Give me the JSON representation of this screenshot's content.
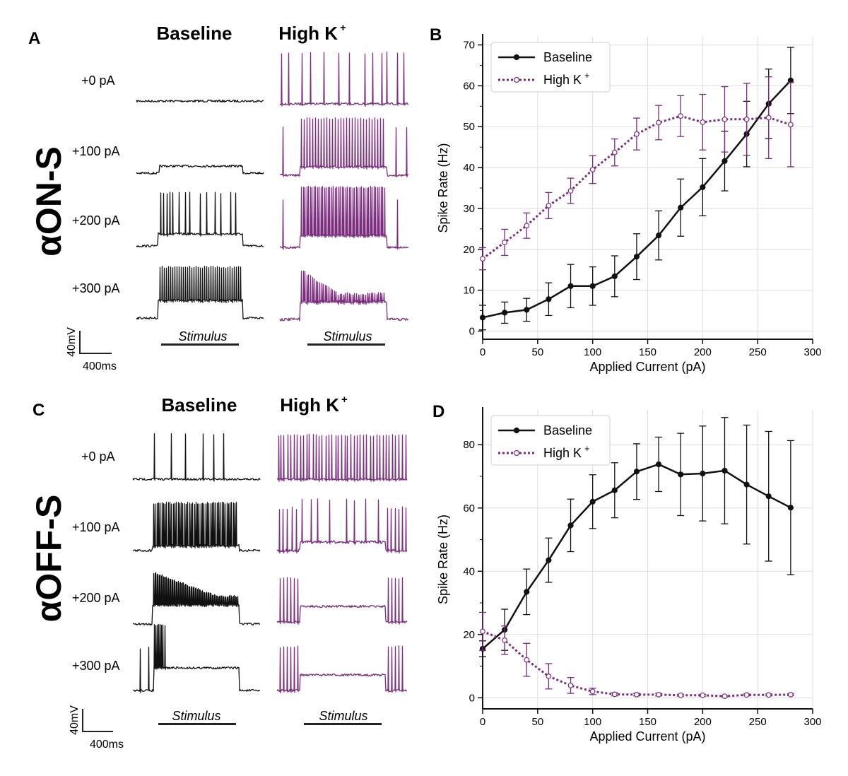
{
  "panel_labels": {
    "a": "A",
    "b": "B",
    "c": "C",
    "d": "D"
  },
  "cell_types": {
    "top": "αON-S",
    "bottom": "αOFF-S"
  },
  "traces": {
    "baseline_title": "Baseline",
    "highk_title": "High K",
    "highk_sup": "+",
    "current_labels": [
      "+0 pA",
      "+100 pA",
      "+200 pA",
      "+300 pA"
    ],
    "stimulus_label": "Stimulus",
    "scale_voltage": "40mV",
    "scale_time": "400ms"
  },
  "colors": {
    "baseline": "#111111",
    "highk": "#7b2d7e",
    "grid": "#dddddd"
  },
  "chart_data": [
    {
      "panel": "B",
      "type": "line",
      "xlabel": "Applied Current (pA)",
      "ylabel": "Spike Rate (Hz)",
      "xlim": [
        0,
        300
      ],
      "ylim": [
        -2,
        72
      ],
      "xticks": [
        0,
        50,
        100,
        150,
        200,
        250,
        300
      ],
      "yticks": [
        0,
        10,
        20,
        30,
        40,
        50,
        60,
        70
      ],
      "grid": true,
      "legend_position": "top-left",
      "x": [
        0,
        20,
        40,
        60,
        80,
        100,
        120,
        140,
        160,
        180,
        200,
        220,
        240,
        260,
        280
      ],
      "series": [
        {
          "name": "Baseline",
          "style": "solid",
          "values": [
            3.3,
            4.5,
            5.2,
            7.8,
            11.0,
            11.0,
            13.4,
            18.2,
            23.4,
            30.2,
            35.2,
            41.6,
            48.2,
            55.6,
            61.3
          ],
          "errors": [
            3.0,
            2.6,
            2.8,
            4.0,
            5.3,
            4.7,
            5.0,
            5.6,
            6.0,
            7.0,
            7.0,
            7.3,
            8.0,
            8.5,
            8.1
          ]
        },
        {
          "name": "High K",
          "legend_sup": "+",
          "style": "dotted",
          "values": [
            17.7,
            21.7,
            25.8,
            30.7,
            34.3,
            39.5,
            43.7,
            48.2,
            51.0,
            52.6,
            51.1,
            51.8,
            51.8,
            52.2,
            50.5
          ],
          "errors": [
            2.7,
            3.2,
            3.1,
            3.2,
            3.1,
            3.4,
            3.3,
            3.9,
            4.2,
            5.0,
            6.8,
            8.0,
            8.8,
            10.0,
            10.3
          ]
        }
      ]
    },
    {
      "panel": "D",
      "type": "line",
      "xlabel": "Applied Current (pA)",
      "ylabel": "Spike Rate (Hz)",
      "xlim": [
        0,
        300
      ],
      "ylim": [
        -3.5,
        91
      ],
      "xticks": [
        0,
        50,
        100,
        150,
        200,
        250,
        300
      ],
      "yticks": [
        0,
        20,
        40,
        60,
        80
      ],
      "grid": true,
      "legend_position": "top-left",
      "x": [
        0,
        20,
        40,
        60,
        80,
        100,
        120,
        140,
        160,
        180,
        200,
        220,
        240,
        260,
        280
      ],
      "series": [
        {
          "name": "Baseline",
          "style": "solid",
          "values": [
            15.5,
            21.5,
            33.5,
            43.5,
            54.5,
            62.0,
            65.6,
            71.5,
            73.8,
            70.6,
            70.9,
            71.8,
            67.4,
            63.7,
            60.1
          ],
          "errors": [
            2.5,
            6.5,
            7.2,
            7.0,
            8.3,
            8.5,
            8.7,
            8.8,
            8.6,
            13.0,
            15.0,
            16.8,
            18.8,
            20.5,
            21.2
          ]
        },
        {
          "name": "High K",
          "legend_sup": "+",
          "style": "dotted",
          "values": [
            21.0,
            18.2,
            12.0,
            6.8,
            3.9,
            2.0,
            1.1,
            1.0,
            1.0,
            0.8,
            0.8,
            0.5,
            0.9,
            0.9,
            1.0
          ],
          "errors": [
            6.0,
            4.5,
            5.2,
            4.0,
            2.5,
            1.0,
            0.5,
            0.4,
            0.4,
            0.3,
            0.3,
            0.2,
            0.3,
            0.3,
            0.3
          ]
        }
      ]
    }
  ]
}
